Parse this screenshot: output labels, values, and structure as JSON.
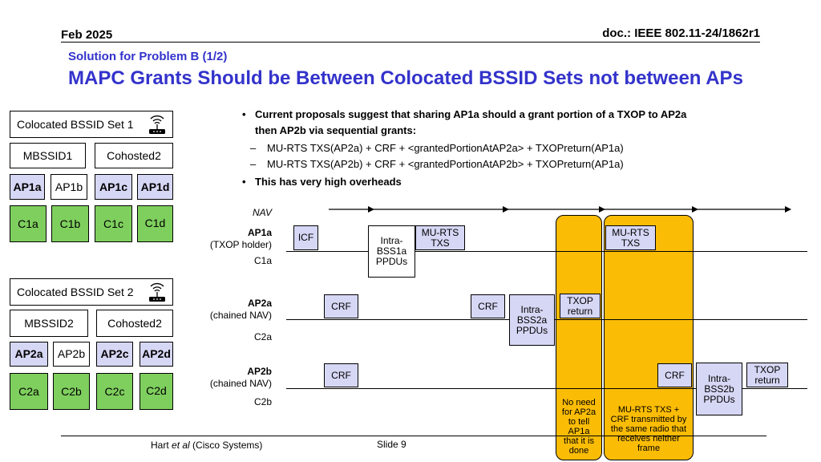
{
  "header": {
    "date": "Feb 2025",
    "doc": "doc.: IEEE 802.11-24/1862r1"
  },
  "title": {
    "subtitle": "Solution for Problem B (1/2)",
    "main": "MAPC Grants Should be Between Colocated BSSID Sets not between APs"
  },
  "colors": {
    "title": "#3333cc",
    "lavender": "#d6d6f5",
    "green": "#7fcf5e",
    "orange": "#fbbc05"
  },
  "bullets": {
    "b1_line1": "Current proposals suggest that sharing AP1a should a grant portion of a TXOP to AP2a",
    "b1_line2": "then AP2b via sequential grants:",
    "sub1": "MU-RTS TXS(AP2a) + CRF + <grantedPortionAtAP2a> + TXOPreturn(AP1a)",
    "sub2": "MU-RTS TXS(AP2b) + CRF + <grantedPortionAtAP2b> + TXOPreturn(AP1a)",
    "b2": "This has very high overheads"
  },
  "set1": {
    "title": "Colocated BSSID Set 1",
    "icon": "router-icon",
    "mbssid": "MBSSID1",
    "cohosted": "Cohosted2",
    "aps": [
      "AP1a",
      "AP1b",
      "AP1c",
      "AP1d"
    ],
    "clients": [
      "C1a",
      "C1b",
      "C1c",
      "C1d"
    ]
  },
  "set2": {
    "title": "Colocated BSSID Set 2",
    "icon": "router-icon",
    "mbssid": "MBSSID2",
    "cohosted": "Cohosted2",
    "aps": [
      "AP2a",
      "AP2b",
      "AP2c",
      "AP2d"
    ],
    "clients": [
      "C2a",
      "C2b",
      "C2c",
      "C2d"
    ]
  },
  "timeline": {
    "nav": "NAV",
    "ap1a": {
      "name": "AP1a",
      "role": "(TXOP holder)",
      "client": "C1a"
    },
    "ap2a": {
      "name": "AP2a",
      "role": "(chained NAV)",
      "client": "C2a"
    },
    "ap2b": {
      "name": "AP2b",
      "role": "(chained NAV)",
      "client": "C2b"
    },
    "frames": {
      "icf": "ICF",
      "intra_bss1a": "Intra-\nBSS1a\nPPDUs",
      "murts1": "MU-RTS\nTXS",
      "murts2": "MU-RTS\nTXS",
      "crf_ap2a_1": "CRF",
      "crf_ap2a_2": "CRF",
      "intra_bss2a": "Intra-\nBSS2a\nPPDUs",
      "txop_return_1": "TXOP\nreturn",
      "crf_ap2b_1": "CRF",
      "crf_ap2b_2": "CRF",
      "intra_bss2b": "Intra-\nBSS2b\nPPDUs",
      "txop_return_2": "TXOP\nreturn"
    },
    "note1": "No need\nfor AP2a\nto tell\nAP1a\nthat it is\ndone",
    "note2": "MU-RTS TXS +\nCRF transmitted by\nthe same radio that\nreceives neither\nframe"
  },
  "footer": {
    "author_prefix": "Hart ",
    "author_etal": "et al",
    "author_suffix": " (Cisco Systems)",
    "slide": "Slide 9"
  }
}
